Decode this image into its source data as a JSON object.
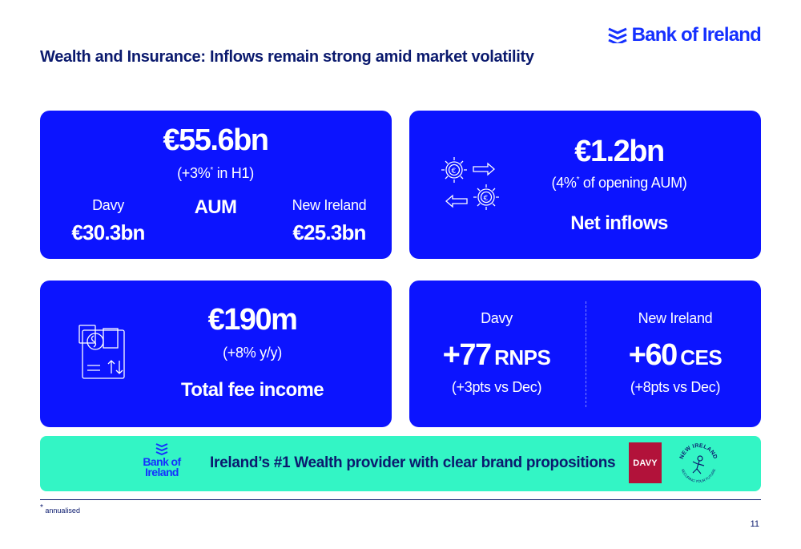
{
  "brand": {
    "name": "Bank of Ireland",
    "color": "#1530ff"
  },
  "title": "Wealth and Insurance: Inflows remain strong amid market volatility",
  "aum_card": {
    "value": "€55.6bn",
    "change_prefix": "(+3%",
    "change_mark": "*",
    "change_suffix": " in H1)",
    "label": "AUM",
    "left_name": "Davy",
    "left_value": "€30.3bn",
    "right_name": "New Ireland",
    "right_value": "€25.3bn"
  },
  "inflows_card": {
    "icon": "euro-gears-exchange-icon",
    "value": "€1.2bn",
    "note_prefix": "(4%",
    "note_mark": "*",
    "note_suffix": " of opening AUM)",
    "label": "Net inflows"
  },
  "fee_card": {
    "icon": "fee-income-calculator-icon",
    "value": "€190m",
    "change": "(+8% y/y)",
    "label": "Total fee income"
  },
  "nps_card": {
    "left_name": "Davy",
    "left_value": "+77",
    "left_unit": "RNPS",
    "left_note": "(+3pts vs Dec)",
    "right_name": "New Ireland",
    "right_value": "+60",
    "right_unit": "CES",
    "right_note": "(+8pts vs Dec)"
  },
  "banner": {
    "color": "#33f5c5",
    "logo_line1": "Bank of",
    "logo_line2": "Ireland",
    "text": "Ireland’s #1 Wealth provider with clear brand propositions",
    "davy_logo": "DAVY",
    "new_ireland_logo_text": "NEW IRELAND",
    "new_ireland_logo_tagline": "SECURING YOUR FUTURE"
  },
  "footnote_mark": "*",
  "footnote": " annualised",
  "page_number": "11",
  "colors": {
    "card": "#0c14ff",
    "navy": "#0b1a6e",
    "davy": "#b2123a"
  }
}
